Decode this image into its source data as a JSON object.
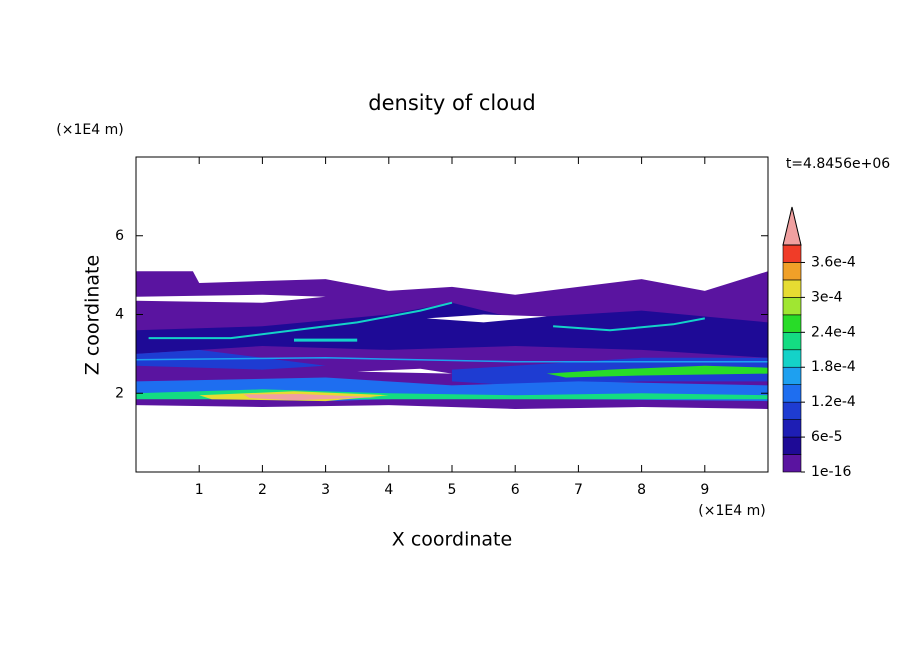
{
  "chart_data": {
    "type": "contour",
    "title": "density of cloud",
    "x_label": "X coordinate",
    "y_label": "Z coordinate",
    "x_unit": "(×1E4 m)",
    "y_unit": "(×1E4 m)",
    "time_label": "t=4.8456e+06",
    "xlim": [
      0,
      10
    ],
    "xticks": [
      1,
      2,
      3,
      4,
      5,
      6,
      7,
      8,
      9
    ],
    "ylim": [
      0,
      8
    ],
    "yticks": [
      2,
      4,
      6
    ],
    "colorbar": {
      "levels": [
        1e-16,
        3e-05,
        6e-05,
        9e-05,
        0.00012,
        0.00015,
        0.00018,
        0.00021,
        0.00024,
        0.00027,
        0.0003,
        0.00033,
        0.00036,
        0.00039
      ],
      "colors": [
        "#5a14a0",
        "#1e0a96",
        "#1e1eb4",
        "#1e3cd2",
        "#1e6ef0",
        "#1ea0f0",
        "#14d2c8",
        "#14dc82",
        "#28dc28",
        "#a0e632",
        "#e6dc32",
        "#f0a028",
        "#f03c28"
      ],
      "over_color": "#f0a0a0",
      "ticks": [
        {
          "value": 1e-16,
          "label": "1e-16"
        },
        {
          "value": 6e-05,
          "label": "6e-5"
        },
        {
          "value": 0.00012,
          "label": "1.2e-4"
        },
        {
          "value": 0.00018,
          "label": "1.8e-4"
        },
        {
          "value": 0.00024,
          "label": "2.4e-4"
        },
        {
          "value": 0.0003,
          "label": "3e-4"
        },
        {
          "value": 0.00036,
          "label": "3.6e-4"
        }
      ]
    }
  }
}
